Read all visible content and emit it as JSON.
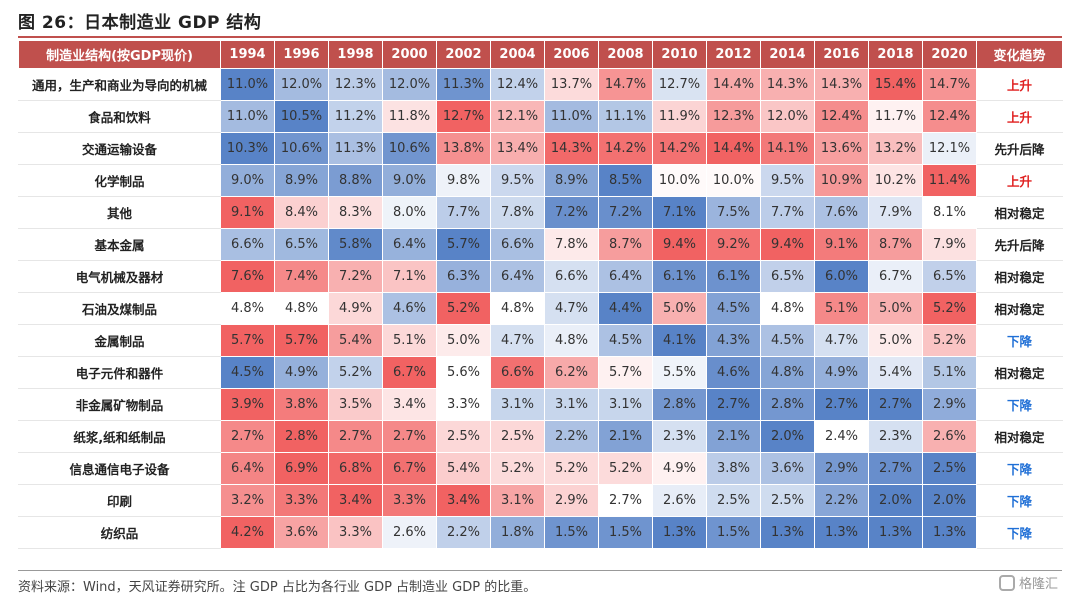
{
  "figure_title": "图 26：日本制造业 GDP 结构",
  "source_note": "资料来源：Wind，天风证券研究所。注 GDP 占比为各行业 GDP 占制造业 GDP 的比重。",
  "watermark": "格隆汇",
  "colors": {
    "header_bg": "#c0504d",
    "high": "#f05454",
    "mid": "#ffffff",
    "low": "#4a78c2",
    "trend_up": "#e02020",
    "trend_down": "#1f6fd6",
    "trend_neutral": "#222222"
  },
  "chart_data": {
    "type": "heatmap",
    "title": "日本制造业 GDP 结构",
    "row_header": "制造业结构(按GDP现价)",
    "trend_header": "变化趋势",
    "years": [
      "1994",
      "1996",
      "1998",
      "2000",
      "2002",
      "2004",
      "2006",
      "2008",
      "2010",
      "2012",
      "2014",
      "2016",
      "2018",
      "2020"
    ],
    "rows": [
      {
        "label": "通用，生产和商业为导向的机械",
        "values": [
          11.0,
          12.0,
          12.3,
          12.0,
          11.3,
          12.4,
          13.7,
          14.7,
          12.7,
          14.4,
          14.3,
          14.3,
          15.4,
          14.7
        ],
        "trend": "上升",
        "trend_type": "up"
      },
      {
        "label": "食品和饮料",
        "values": [
          11.0,
          10.5,
          11.2,
          11.8,
          12.7,
          12.1,
          11.0,
          11.1,
          11.9,
          12.3,
          12.0,
          12.4,
          11.7,
          12.4
        ],
        "trend": "上升",
        "trend_type": "up"
      },
      {
        "label": "交通运输设备",
        "values": [
          10.3,
          10.6,
          11.3,
          10.6,
          13.8,
          13.4,
          14.3,
          14.2,
          14.2,
          14.4,
          14.1,
          13.6,
          13.2,
          12.1
        ],
        "trend": "先升后降",
        "trend_type": "neutral"
      },
      {
        "label": "化学制品",
        "values": [
          9.0,
          8.9,
          8.8,
          9.0,
          9.8,
          9.5,
          8.9,
          8.5,
          10.0,
          10.0,
          9.5,
          10.9,
          10.2,
          11.4
        ],
        "trend": "上升",
        "trend_type": "up"
      },
      {
        "label": "其他",
        "values": [
          9.1,
          8.4,
          8.3,
          8.0,
          7.7,
          7.8,
          7.2,
          7.2,
          7.1,
          7.5,
          7.7,
          7.6,
          7.9,
          8.1
        ],
        "trend": "相对稳定",
        "trend_type": "neutral"
      },
      {
        "label": "基本金属",
        "values": [
          6.6,
          6.5,
          5.8,
          6.4,
          5.7,
          6.6,
          7.8,
          8.7,
          9.4,
          9.2,
          9.4,
          9.1,
          8.7,
          7.9
        ],
        "trend": "先升后降",
        "trend_type": "neutral"
      },
      {
        "label": "电气机械及器材",
        "values": [
          7.6,
          7.4,
          7.2,
          7.1,
          6.3,
          6.4,
          6.6,
          6.4,
          6.1,
          6.1,
          6.5,
          6.0,
          6.7,
          6.5
        ],
        "trend": "相对稳定",
        "trend_type": "neutral"
      },
      {
        "label": "石油及煤制品",
        "values": [
          4.8,
          4.8,
          4.9,
          4.6,
          5.2,
          4.8,
          4.7,
          4.4,
          5.0,
          4.5,
          4.8,
          5.1,
          5.0,
          5.2
        ],
        "trend": "相对稳定",
        "trend_type": "neutral"
      },
      {
        "label": "金属制品",
        "values": [
          5.7,
          5.7,
          5.4,
          5.1,
          5.0,
          4.7,
          4.8,
          4.5,
          4.1,
          4.3,
          4.5,
          4.7,
          5.0,
          5.2
        ],
        "trend": "下降",
        "trend_type": "down"
      },
      {
        "label": "电子元件和器件",
        "values": [
          4.5,
          4.9,
          5.2,
          6.7,
          5.6,
          6.6,
          6.2,
          5.7,
          5.5,
          4.6,
          4.8,
          4.9,
          5.4,
          5.1
        ],
        "trend": "相对稳定",
        "trend_type": "neutral"
      },
      {
        "label": "非金属矿物制品",
        "values": [
          3.9,
          3.8,
          3.5,
          3.4,
          3.3,
          3.1,
          3.1,
          3.1,
          2.8,
          2.7,
          2.8,
          2.7,
          2.7,
          2.9
        ],
        "trend": "下降",
        "trend_type": "down"
      },
      {
        "label": "纸浆,纸和纸制品",
        "values": [
          2.7,
          2.8,
          2.7,
          2.7,
          2.5,
          2.5,
          2.2,
          2.1,
          2.3,
          2.1,
          2.0,
          2.4,
          2.3,
          2.6
        ],
        "trend": "相对稳定",
        "trend_type": "neutral"
      },
      {
        "label": "信息通信电子设备",
        "values": [
          6.4,
          6.9,
          6.8,
          6.7,
          5.4,
          5.2,
          5.2,
          5.2,
          4.9,
          3.8,
          3.6,
          2.9,
          2.7,
          2.5
        ],
        "trend": "下降",
        "trend_type": "down"
      },
      {
        "label": "印刷",
        "values": [
          3.2,
          3.3,
          3.4,
          3.3,
          3.4,
          3.1,
          2.9,
          2.7,
          2.6,
          2.5,
          2.5,
          2.2,
          2.0,
          2.0
        ],
        "trend": "下降",
        "trend_type": "down"
      },
      {
        "label": "纺织品",
        "values": [
          4.2,
          3.6,
          3.3,
          2.6,
          2.2,
          1.8,
          1.5,
          1.5,
          1.3,
          1.5,
          1.3,
          1.3,
          1.3,
          1.3
        ],
        "trend": "下降",
        "trend_type": "down"
      }
    ]
  }
}
